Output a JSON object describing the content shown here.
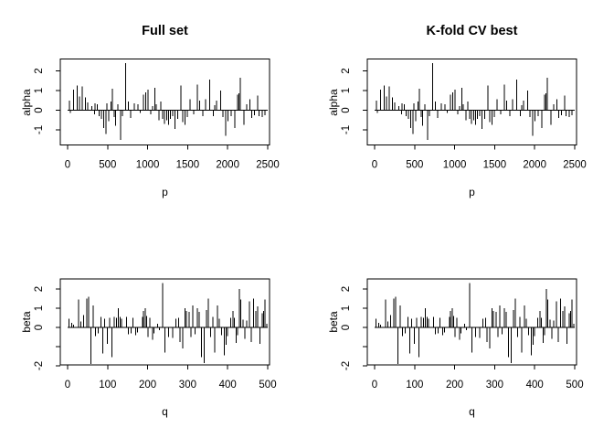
{
  "figure": {
    "background": "#ffffff",
    "ink": "#000000",
    "panels": [
      {
        "id": "top-left",
        "title": "Full set",
        "xlabel": "p",
        "ylabel": "alpha"
      },
      {
        "id": "top-right",
        "title": "K-fold CV best",
        "xlabel": "p",
        "ylabel": "alpha"
      },
      {
        "id": "bottom-left",
        "title": "",
        "xlabel": "q",
        "ylabel": "beta"
      },
      {
        "id": "bottom-right",
        "title": "",
        "xlabel": "q",
        "ylabel": "beta"
      }
    ]
  },
  "chart_data": {
    "layout": "2x2 grid of base-R style spike (type='h') plots; left and right columns display identical data",
    "series": {
      "alpha": {
        "x": [
          20,
          35,
          75,
          120,
          150,
          185,
          220,
          250,
          300,
          335,
          345,
          370,
          395,
          420,
          450,
          478,
          490,
          515,
          540,
          562,
          580,
          600,
          625,
          662,
          685,
          727,
          757,
          788,
          833,
          878,
          905,
          947,
          977,
          1005,
          1040,
          1060,
          1090,
          1110,
          1140,
          1165,
          1185,
          1210,
          1237,
          1260,
          1287,
          1312,
          1342,
          1373,
          1415,
          1440,
          1465,
          1495,
          1530,
          1577,
          1620,
          1652,
          1690,
          1722,
          1777,
          1823,
          1840,
          1862,
          1910,
          1938,
          1975,
          2005,
          2043,
          2088,
          2125,
          2142,
          2158,
          2202,
          2240,
          2278,
          2298,
          2335,
          2373,
          2393,
          2430,
          2468
        ],
        "y": [
          0.5,
          -0.15,
          1.05,
          1.25,
          0.7,
          1.2,
          0.65,
          0.4,
          0.2,
          -0.2,
          0.35,
          0.3,
          -0.3,
          -0.45,
          -0.9,
          -1.2,
          0.35,
          -0.55,
          0.45,
          1.1,
          -0.35,
          -0.8,
          0.3,
          -1.5,
          -0.3,
          2.4,
          0.45,
          -0.4,
          0.35,
          0.3,
          -0.15,
          0.8,
          0.9,
          1.05,
          -0.2,
          0.2,
          1.15,
          0.3,
          -0.5,
          0.45,
          -0.45,
          -0.7,
          -0.5,
          -0.75,
          -0.45,
          -0.3,
          -0.95,
          -0.45,
          1.25,
          -0.6,
          -0.75,
          -0.35,
          0.55,
          -0.2,
          1.3,
          0.5,
          -0.3,
          0.55,
          1.55,
          -0.3,
          0.25,
          0.5,
          1.0,
          -0.35,
          -1.3,
          -0.55,
          -0.3,
          -0.9,
          0.8,
          0.85,
          1.65,
          -0.75,
          0.3,
          0.55,
          -0.4,
          -0.25,
          0.75,
          -0.3,
          -0.35,
          -0.25
        ]
      },
      "beta": {
        "x": [
          3,
          10,
          15,
          27,
          33,
          40,
          48,
          53,
          58,
          64,
          70,
          76,
          83,
          88,
          93,
          99,
          105,
          111,
          117,
          122,
          127,
          131,
          135,
          147,
          152,
          159,
          163,
          170,
          175,
          187,
          190,
          194,
          198,
          201,
          205,
          212,
          216,
          225,
          230,
          238,
          243,
          252,
          263,
          271,
          277,
          281,
          288,
          293,
          297,
          304,
          308,
          313,
          318,
          324,
          329,
          334,
          341,
          347,
          352,
          357,
          363,
          368,
          374,
          379,
          385,
          391,
          396,
          400,
          407,
          413,
          417,
          421,
          425,
          429,
          433,
          438,
          443,
          448,
          454,
          459,
          465,
          470,
          475,
          481,
          486,
          490,
          493,
          498
        ],
        "y": [
          0.45,
          0.25,
          0.15,
          1.45,
          0.3,
          0.65,
          1.5,
          1.6,
          -1.9,
          1.15,
          -0.45,
          -0.3,
          0.55,
          -1.35,
          0.45,
          -0.85,
          0.5,
          -1.55,
          0.55,
          0.5,
          1.0,
          0.55,
          0.45,
          0.55,
          -0.35,
          -0.3,
          0.5,
          -0.4,
          -0.25,
          0.55,
          0.85,
          1.0,
          0.6,
          -0.5,
          0.5,
          -0.65,
          -0.3,
          0.2,
          -0.15,
          2.3,
          -1.3,
          -0.5,
          -0.55,
          0.45,
          0.5,
          -0.75,
          -1.1,
          1.0,
          0.85,
          0.8,
          -0.5,
          1.15,
          -0.35,
          1.0,
          0.8,
          -1.55,
          -1.85,
          0.9,
          1.5,
          -0.5,
          0.55,
          -1.3,
          1.15,
          0.45,
          -0.4,
          -1.45,
          -0.9,
          -0.45,
          0.5,
          0.85,
          0.5,
          -0.8,
          -0.4,
          2.0,
          1.45,
          0.4,
          -0.6,
          0.35,
          1.35,
          -0.75,
          1.5,
          0.85,
          1.1,
          -0.85,
          0.75,
          0.85,
          1.45,
          0.2
        ]
      }
    },
    "charts": [
      {
        "type": "bar",
        "style": "vertical-spikes",
        "panel": "top-left",
        "title": "Full set",
        "xlabel": "p",
        "ylabel": "alpha",
        "series": "alpha",
        "xlim": [
          0,
          2500
        ],
        "ylim": [
          -1.8,
          2.56
        ],
        "grid": false,
        "xticks": [
          0,
          500,
          1000,
          1500,
          2000,
          2500
        ],
        "yticks": [
          -1,
          0,
          1,
          2
        ],
        "ytick_labels": [
          "-1",
          "0",
          "1",
          "2"
        ]
      },
      {
        "type": "bar",
        "style": "vertical-spikes",
        "panel": "top-right",
        "title": "K-fold CV best",
        "xlabel": "p",
        "ylabel": "alpha",
        "series": "alpha",
        "xlim": [
          0,
          2500
        ],
        "ylim": [
          -1.8,
          2.56
        ],
        "grid": false,
        "xticks": [
          0,
          500,
          1000,
          1500,
          2000,
          2500
        ],
        "yticks": [
          -1,
          0,
          1,
          2
        ],
        "ytick_labels": [
          "-1",
          "0",
          "1",
          "2"
        ]
      },
      {
        "type": "bar",
        "style": "vertical-spikes",
        "panel": "bottom-left",
        "title": "",
        "xlabel": "q",
        "ylabel": "beta",
        "series": "beta",
        "xlim": [
          0,
          500
        ],
        "ylim": [
          -1.95,
          2.52
        ],
        "grid": false,
        "xticks": [
          0,
          100,
          200,
          300,
          400,
          500
        ],
        "yticks": [
          -2,
          -1,
          0,
          1,
          2
        ],
        "ytick_labels": [
          "-2",
          "",
          "0",
          "1",
          "2"
        ]
      },
      {
        "type": "bar",
        "style": "vertical-spikes",
        "panel": "bottom-right",
        "title": "",
        "xlabel": "q",
        "ylabel": "beta",
        "series": "beta",
        "xlim": [
          0,
          500
        ],
        "ylim": [
          -1.95,
          2.52
        ],
        "grid": false,
        "xticks": [
          0,
          100,
          200,
          300,
          400,
          500
        ],
        "yticks": [
          -2,
          -1,
          0,
          1,
          2
        ],
        "ytick_labels": [
          "-2",
          "",
          "0",
          "1",
          "2"
        ]
      }
    ]
  }
}
